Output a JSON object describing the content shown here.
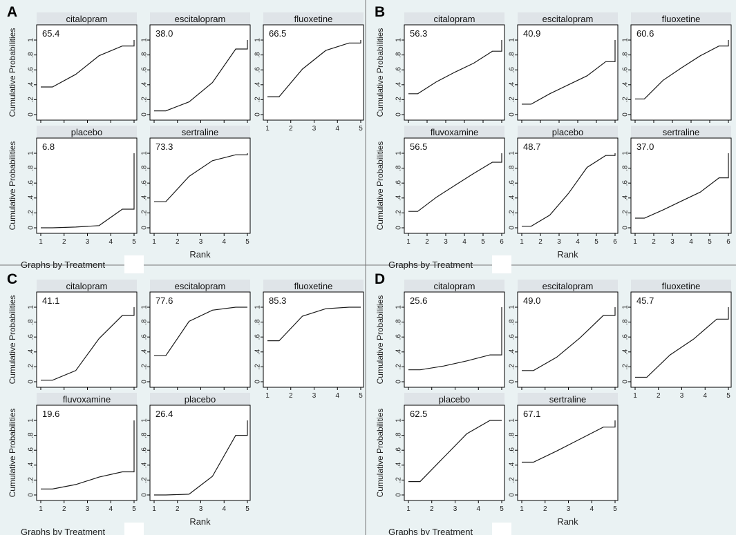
{
  "figure": {
    "colors": {
      "background": "#eaf2f3",
      "strip": "#dfe4e8",
      "plot_bg": "#ffffff",
      "line": "#1a1a1a",
      "frame": "#000000",
      "divider": "#777777"
    },
    "ylabel": "Cumulative Probabilities",
    "xlabel": "Rank",
    "note": "Graphs by Treatment"
  },
  "chart_data": [
    {
      "panel": "A",
      "type": "line",
      "xlim": [
        1,
        5
      ],
      "ylim": [
        0,
        1
      ],
      "yticks": [
        "0",
        ".2",
        ".4",
        ".6",
        ".8",
        "1"
      ],
      "xticks": [
        "1",
        "2",
        "3",
        "4",
        "5"
      ],
      "xlabel": "Rank",
      "ylabel": "Cumulative Probabilities",
      "note": "Graphs by Treatment",
      "series": [
        {
          "name": "citalopram",
          "sucra": "65.4",
          "x": [
            1,
            1.5,
            2.5,
            3.5,
            4.5,
            5,
            5
          ],
          "y": [
            0.37,
            0.37,
            0.54,
            0.79,
            0.92,
            0.92,
            1.0
          ]
        },
        {
          "name": "escitalopram",
          "sucra": "38.0",
          "x": [
            1,
            1.5,
            2.5,
            3.5,
            4.5,
            5,
            5
          ],
          "y": [
            0.05,
            0.05,
            0.17,
            0.43,
            0.88,
            0.88,
            1.0
          ]
        },
        {
          "name": "fluoxetine",
          "sucra": "66.5",
          "x": [
            1,
            1.5,
            2.5,
            3.5,
            4.5,
            5,
            5
          ],
          "y": [
            0.24,
            0.24,
            0.61,
            0.86,
            0.96,
            0.96,
            1.0
          ]
        },
        {
          "name": "placebo",
          "sucra": "6.8",
          "x": [
            1,
            1.5,
            2.5,
            3.5,
            4.5,
            5,
            5
          ],
          "y": [
            0.0,
            0.0,
            0.01,
            0.03,
            0.25,
            0.25,
            1.0
          ]
        },
        {
          "name": "sertraline",
          "sucra": "73.3",
          "x": [
            1,
            1.5,
            2.5,
            3.5,
            4.5,
            5,
            5
          ],
          "y": [
            0.35,
            0.35,
            0.69,
            0.9,
            0.98,
            0.98,
            1.0
          ]
        }
      ]
    },
    {
      "panel": "B",
      "type": "line",
      "xlim": [
        1,
        6
      ],
      "ylim": [
        0,
        1
      ],
      "yticks": [
        "0",
        ".2",
        ".4",
        ".6",
        ".8",
        "1"
      ],
      "xticks": [
        "1",
        "2",
        "3",
        "4",
        "5",
        "6"
      ],
      "xlabel": "Rank",
      "ylabel": "Cumulative Probabilities",
      "note": "Graphs by Treatment",
      "series": [
        {
          "name": "citalopram",
          "sucra": "56.3",
          "x": [
            1,
            1.5,
            2.5,
            3.5,
            4.5,
            5.5,
            6,
            6
          ],
          "y": [
            0.28,
            0.28,
            0.44,
            0.57,
            0.69,
            0.85,
            0.85,
            1.0
          ]
        },
        {
          "name": "escitalopram",
          "sucra": "40.9",
          "x": [
            1,
            1.5,
            2.5,
            3.5,
            4.5,
            5.5,
            6,
            6
          ],
          "y": [
            0.14,
            0.14,
            0.28,
            0.4,
            0.52,
            0.71,
            0.71,
            1.0
          ]
        },
        {
          "name": "fluoxetine",
          "sucra": "60.6",
          "x": [
            1,
            1.5,
            2.5,
            3.5,
            4.5,
            5.5,
            6,
            6
          ],
          "y": [
            0.21,
            0.21,
            0.46,
            0.63,
            0.79,
            0.92,
            0.92,
            1.0
          ]
        },
        {
          "name": "fluvoxamine",
          "sucra": "56.5",
          "x": [
            1,
            1.5,
            2.5,
            3.5,
            4.5,
            5.5,
            6,
            6
          ],
          "y": [
            0.22,
            0.22,
            0.41,
            0.57,
            0.73,
            0.88,
            0.88,
            1.0
          ]
        },
        {
          "name": "placebo",
          "sucra": "48.7",
          "x": [
            1,
            1.5,
            2.5,
            3.5,
            4.5,
            5.5,
            6,
            6
          ],
          "y": [
            0.02,
            0.02,
            0.17,
            0.46,
            0.81,
            0.97,
            0.97,
            1.0
          ]
        },
        {
          "name": "sertraline",
          "sucra": "37.0",
          "x": [
            1,
            1.5,
            2.5,
            3.5,
            4.5,
            5.5,
            6,
            6
          ],
          "y": [
            0.13,
            0.13,
            0.24,
            0.36,
            0.48,
            0.67,
            0.67,
            1.0
          ]
        }
      ]
    },
    {
      "panel": "C",
      "type": "line",
      "xlim": [
        1,
        5
      ],
      "ylim": [
        0,
        1
      ],
      "yticks": [
        "0",
        ".2",
        ".4",
        ".6",
        ".8",
        "1"
      ],
      "xticks": [
        "1",
        "2",
        "3",
        "4",
        "5"
      ],
      "xlabel": "Rank",
      "ylabel": "Cumulative Probabilities",
      "note": "Graphs by Treatment",
      "series": [
        {
          "name": "citalopram",
          "sucra": "41.1",
          "x": [
            1,
            1.5,
            2.5,
            3.5,
            4.5,
            5,
            5
          ],
          "y": [
            0.02,
            0.02,
            0.15,
            0.58,
            0.89,
            0.89,
            1.0
          ]
        },
        {
          "name": "escitalopram",
          "sucra": "77.6",
          "x": [
            1,
            1.5,
            2.5,
            3.5,
            4.5,
            5
          ],
          "y": [
            0.35,
            0.35,
            0.81,
            0.96,
            1.0,
            1.0
          ]
        },
        {
          "name": "fluoxetine",
          "sucra": "85.3",
          "x": [
            1,
            1.5,
            2.5,
            3.5,
            4.5,
            5
          ],
          "y": [
            0.55,
            0.55,
            0.88,
            0.98,
            1.0,
            1.0
          ]
        },
        {
          "name": "fluvoxamine",
          "sucra": "19.6",
          "x": [
            1,
            1.5,
            2.5,
            3.5,
            4.5,
            5,
            5
          ],
          "y": [
            0.08,
            0.08,
            0.14,
            0.24,
            0.31,
            0.31,
            1.0
          ]
        },
        {
          "name": "placebo",
          "sucra": "26.4",
          "x": [
            1,
            1.5,
            2.5,
            3.5,
            4.5,
            5,
            5
          ],
          "y": [
            0.0,
            0.0,
            0.01,
            0.25,
            0.8,
            0.8,
            1.0
          ]
        }
      ]
    },
    {
      "panel": "D",
      "type": "line",
      "xlim": [
        1,
        5
      ],
      "ylim": [
        0,
        1
      ],
      "yticks": [
        "0",
        ".2",
        ".4",
        ".6",
        ".8",
        "1"
      ],
      "xticks": [
        "1",
        "2",
        "3",
        "4",
        "5"
      ],
      "xlabel": "Rank",
      "ylabel": "Cumulative Probabilities",
      "note": "Graphs by Treatment",
      "series": [
        {
          "name": "citalopram",
          "sucra": "25.6",
          "x": [
            1,
            1.5,
            2.5,
            3.5,
            4.5,
            5,
            5
          ],
          "y": [
            0.16,
            0.16,
            0.21,
            0.28,
            0.36,
            0.36,
            1.0
          ]
        },
        {
          "name": "escitalopram",
          "sucra": "49.0",
          "x": [
            1,
            1.5,
            2.5,
            3.5,
            4.5,
            5,
            5
          ],
          "y": [
            0.15,
            0.15,
            0.33,
            0.59,
            0.89,
            0.89,
            1.0
          ]
        },
        {
          "name": "fluoxetine",
          "sucra": "45.7",
          "x": [
            1,
            1.5,
            2.5,
            3.5,
            4.5,
            5,
            5
          ],
          "y": [
            0.06,
            0.06,
            0.36,
            0.57,
            0.84,
            0.84,
            1.0
          ]
        },
        {
          "name": "placebo",
          "sucra": "62.5",
          "x": [
            1,
            1.5,
            2.5,
            3.5,
            4.5,
            5
          ],
          "y": [
            0.18,
            0.18,
            0.5,
            0.82,
            1.0,
            1.0
          ]
        },
        {
          "name": "sertraline",
          "sucra": "67.1",
          "x": [
            1,
            1.5,
            2.5,
            3.5,
            4.5,
            5,
            5
          ],
          "y": [
            0.44,
            0.44,
            0.59,
            0.75,
            0.91,
            0.91,
            1.0
          ]
        }
      ]
    }
  ]
}
